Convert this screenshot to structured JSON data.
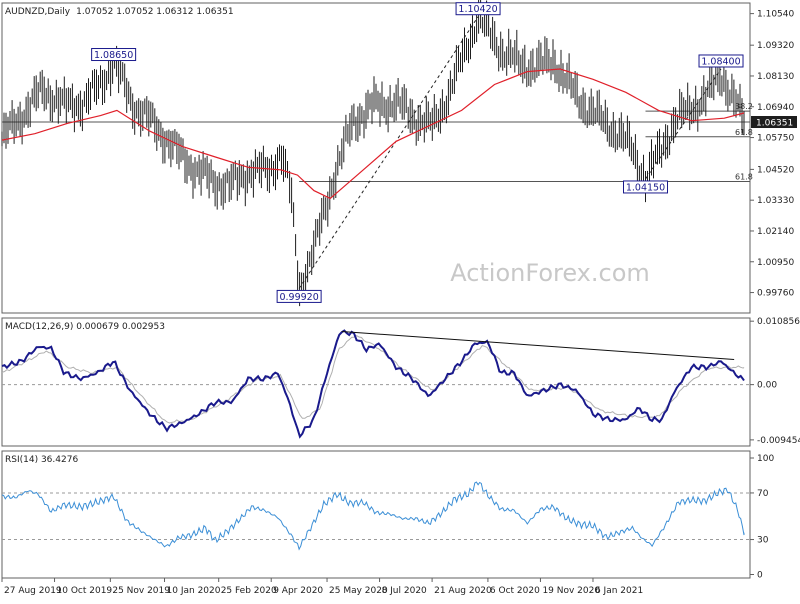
{
  "chart_data": [
    {
      "type": "ohlc",
      "panel": "price",
      "symbol": "AUDNZD,Daily",
      "header_values": "1.07052 1.07052 1.06312 1.06351",
      "watermark": "ActionForex.com",
      "ylim": [
        0.9897,
        1.1095
      ],
      "y_ticks": [
        "1.10540",
        "1.09320",
        "1.08130",
        "1.06940",
        "1.05750",
        "1.04520",
        "1.03330",
        "1.02140",
        "1.00950",
        "0.99760"
      ],
      "current_price": "1.06351",
      "ohlc_bars": 370,
      "price_path": [
        [
          0,
          1.057
        ],
        [
          12,
          1.066
        ],
        [
          25,
          1.076
        ],
        [
          38,
          1.07
        ],
        [
          50,
          1.071
        ],
        [
          60,
          1.078
        ],
        [
          68,
          1.0865
        ],
        [
          80,
          1.07
        ],
        [
          92,
          1.063
        ],
        [
          105,
          1.053
        ],
        [
          118,
          1.045
        ],
        [
          130,
          1.04
        ],
        [
          140,
          1.039
        ],
        [
          152,
          1.045
        ],
        [
          163,
          1.044
        ],
        [
          170,
          1.052
        ],
        [
          176,
          1.036
        ],
        [
          181,
          0.9992
        ],
        [
          190,
          1.014
        ],
        [
          202,
          1.042
        ],
        [
          214,
          1.064
        ],
        [
          226,
          1.07
        ],
        [
          240,
          1.071
        ],
        [
          252,
          1.065
        ],
        [
          262,
          1.062
        ],
        [
          272,
          1.074
        ],
        [
          282,
          1.091
        ],
        [
          290,
          1.1042
        ],
        [
          298,
          1.097
        ],
        [
          306,
          1.09
        ],
        [
          316,
          1.086
        ],
        [
          326,
          1.085
        ],
        [
          336,
          1.088
        ],
        [
          342,
          1.081
        ],
        [
          352,
          1.072
        ],
        [
          362,
          1.066
        ],
        [
          374,
          1.06
        ],
        [
          384,
          1.053
        ],
        [
          392,
          1.0415
        ],
        [
          400,
          1.051
        ],
        [
          410,
          1.064
        ],
        [
          420,
          1.069
        ],
        [
          430,
          1.074
        ],
        [
          438,
          1.0825
        ],
        [
          446,
          1.072
        ],
        [
          452,
          1.0635
        ]
      ],
      "moving_average": [
        [
          0,
          1.0565
        ],
        [
          20,
          1.059
        ],
        [
          40,
          1.063
        ],
        [
          60,
          1.066
        ],
        [
          70,
          1.068
        ],
        [
          90,
          1.06
        ],
        [
          110,
          1.054
        ],
        [
          130,
          1.05
        ],
        [
          150,
          1.046
        ],
        [
          170,
          1.045
        ],
        [
          180,
          1.043
        ],
        [
          190,
          1.037
        ],
        [
          200,
          1.034
        ],
        [
          220,
          1.045
        ],
        [
          240,
          1.056
        ],
        [
          260,
          1.062
        ],
        [
          280,
          1.068
        ],
        [
          300,
          1.078
        ],
        [
          320,
          1.083
        ],
        [
          340,
          1.084
        ],
        [
          360,
          1.08
        ],
        [
          380,
          1.075
        ],
        [
          400,
          1.068
        ],
        [
          420,
          1.064
        ],
        [
          440,
          1.065
        ],
        [
          452,
          1.067
        ]
      ],
      "annotations": [
        {
          "label": "1.08650",
          "kind": "high",
          "x": 68,
          "y": 1.0865
        },
        {
          "label": "0.99920",
          "kind": "low",
          "x": 181,
          "y": 0.9992
        },
        {
          "label": "1.10420",
          "kind": "high",
          "x": 290,
          "y": 1.1042
        },
        {
          "label": "1.04150",
          "kind": "low",
          "x": 392,
          "y": 1.0415
        },
        {
          "label": "1.08400",
          "kind": "high",
          "x": 438,
          "y": 1.084
        }
      ],
      "trendlines": [
        {
          "from": [
            181,
            0.9992
          ],
          "to": [
            290,
            1.1042
          ]
        },
        {
          "from": [
            392,
            1.0415
          ],
          "to": [
            438,
            1.084
          ]
        }
      ],
      "horizontal_levels": [
        {
          "value": 1.0405,
          "label": "61.8",
          "from_x": 181
        },
        {
          "value": 1.0578,
          "label": "61.8",
          "from_x": 392
        },
        {
          "value": 1.0677,
          "label": "38.2",
          "from_x": 392
        },
        {
          "value": 1.06351,
          "label": "",
          "from_x": 0
        }
      ]
    },
    {
      "type": "line",
      "panel": "macd",
      "title": "MACD(12,26,9) 0.000679 0.002953",
      "ylim": [
        -0.0105,
        0.0114
      ],
      "y_ticks": [
        "0.010856",
        "0.00",
        "-0.009454"
      ],
      "zero_line": 0.0,
      "macd_path": [
        [
          0,
          0.003
        ],
        [
          12,
          0.004
        ],
        [
          22,
          0.0065
        ],
        [
          30,
          0.0062
        ],
        [
          38,
          0.002
        ],
        [
          48,
          0.001
        ],
        [
          58,
          0.002
        ],
        [
          68,
          0.004
        ],
        [
          78,
          -0.001
        ],
        [
          90,
          -0.005
        ],
        [
          100,
          -0.0075
        ],
        [
          110,
          -0.0065
        ],
        [
          120,
          -0.005
        ],
        [
          130,
          -0.003
        ],
        [
          140,
          -0.003
        ],
        [
          150,
          0.001
        ],
        [
          160,
          0.001
        ],
        [
          168,
          0.002
        ],
        [
          175,
          -0.003
        ],
        [
          181,
          -0.0088
        ],
        [
          190,
          -0.006
        ],
        [
          198,
          0.002
        ],
        [
          206,
          0.0091
        ],
        [
          214,
          0.0087
        ],
        [
          222,
          0.006
        ],
        [
          230,
          0.007
        ],
        [
          240,
          0.003
        ],
        [
          250,
          0.001
        ],
        [
          260,
          -0.002
        ],
        [
          270,
          0.001
        ],
        [
          280,
          0.004
        ],
        [
          288,
          0.007
        ],
        [
          296,
          0.0073
        ],
        [
          304,
          0.002
        ],
        [
          312,
          0.002
        ],
        [
          320,
          -0.002
        ],
        [
          330,
          -0.001
        ],
        [
          340,
          0.0
        ],
        [
          350,
          -0.001
        ],
        [
          360,
          -0.005
        ],
        [
          370,
          -0.006
        ],
        [
          380,
          -0.006
        ],
        [
          388,
          -0.004
        ],
        [
          396,
          -0.006
        ],
        [
          402,
          -0.006
        ],
        [
          410,
          -0.001
        ],
        [
          420,
          0.003
        ],
        [
          430,
          0.003
        ],
        [
          438,
          0.004
        ],
        [
          446,
          0.002
        ],
        [
          452,
          0.0007
        ]
      ],
      "signal_path": [
        [
          0,
          0.002
        ],
        [
          15,
          0.004
        ],
        [
          27,
          0.0058
        ],
        [
          40,
          0.003
        ],
        [
          55,
          0.002
        ],
        [
          70,
          0.003
        ],
        [
          85,
          -0.002
        ],
        [
          100,
          -0.0065
        ],
        [
          115,
          -0.006
        ],
        [
          135,
          -0.003
        ],
        [
          155,
          0.0008
        ],
        [
          170,
          0.0015
        ],
        [
          183,
          -0.006
        ],
        [
          194,
          -0.004
        ],
        [
          205,
          0.006
        ],
        [
          215,
          0.0085
        ],
        [
          228,
          0.0065
        ],
        [
          245,
          0.0025
        ],
        [
          262,
          -0.001
        ],
        [
          278,
          0.003
        ],
        [
          293,
          0.0068
        ],
        [
          306,
          0.0035
        ],
        [
          322,
          -0.001
        ],
        [
          345,
          -0.0005
        ],
        [
          365,
          -0.0045
        ],
        [
          385,
          -0.0055
        ],
        [
          400,
          -0.0055
        ],
        [
          415,
          -0.0005
        ],
        [
          430,
          0.0028
        ],
        [
          446,
          0.003
        ],
        [
          452,
          0.00295
        ]
      ],
      "trendline": {
        "from": [
          207,
          0.0091
        ],
        "to": [
          446,
          0.0043
        ]
      }
    },
    {
      "type": "line",
      "panel": "rsi",
      "title": "RSI(14) 36.4276",
      "ylim": [
        -3,
        106
      ],
      "y_ticks": [
        "100",
        "70",
        "30",
        "0"
      ],
      "levels": [
        70,
        30
      ],
      "rsi_path": [
        [
          0,
          67
        ],
        [
          8,
          66
        ],
        [
          16,
          72
        ],
        [
          22,
          69
        ],
        [
          30,
          54
        ],
        [
          38,
          60
        ],
        [
          48,
          58
        ],
        [
          58,
          62
        ],
        [
          68,
          67
        ],
        [
          76,
          46
        ],
        [
          86,
          36
        ],
        [
          94,
          29
        ],
        [
          100,
          24
        ],
        [
          108,
          32
        ],
        [
          116,
          34
        ],
        [
          124,
          40
        ],
        [
          130,
          29
        ],
        [
          138,
          38
        ],
        [
          146,
          49
        ],
        [
          152,
          58
        ],
        [
          160,
          55
        ],
        [
          168,
          49
        ],
        [
          176,
          34
        ],
        [
          181,
          23
        ],
        [
          188,
          40
        ],
        [
          196,
          60
        ],
        [
          204,
          69
        ],
        [
          212,
          61
        ],
        [
          220,
          62
        ],
        [
          228,
          53
        ],
        [
          236,
          52
        ],
        [
          244,
          48
        ],
        [
          252,
          48
        ],
        [
          260,
          44
        ],
        [
          268,
          53
        ],
        [
          276,
          65
        ],
        [
          284,
          69
        ],
        [
          290,
          80
        ],
        [
          296,
          68
        ],
        [
          304,
          56
        ],
        [
          312,
          55
        ],
        [
          320,
          44
        ],
        [
          328,
          56
        ],
        [
          336,
          58
        ],
        [
          344,
          48
        ],
        [
          352,
          43
        ],
        [
          360,
          42
        ],
        [
          368,
          32
        ],
        [
          376,
          36
        ],
        [
          384,
          40
        ],
        [
          390,
          31
        ],
        [
          396,
          25
        ],
        [
          404,
          42
        ],
        [
          412,
          62
        ],
        [
          420,
          64
        ],
        [
          428,
          63
        ],
        [
          436,
          70
        ],
        [
          442,
          73
        ],
        [
          448,
          56
        ],
        [
          452,
          36
        ]
      ]
    }
  ],
  "x_axis": {
    "labels": [
      "27 Aug 2019",
      "10 Oct 2019",
      "25 Nov 2019",
      "10 Jan 2020",
      "25 Feb 2020",
      "9 Apr 2020",
      "25 May 2020",
      "8 Jul 2020",
      "21 Aug 2020",
      "6 Oct 2020",
      "19 Nov 2020",
      "6 Jan 2021"
    ],
    "label_positions": [
      0,
      32,
      66,
      99,
      132,
      164,
      198,
      230,
      262,
      296,
      328,
      360
    ],
    "domain": [
      0,
      452
    ]
  },
  "colors": {
    "price_bars": "#1e1e1e",
    "moving_average": "#e0202a",
    "macd_line": "#1a1a8c",
    "signal_line": "#b0b0b0",
    "rsi_line": "#3c8fd6",
    "grid_line": "#9a9a9a",
    "axis": "#606060",
    "annotation_border": "#1a1a8c",
    "annotation_text": "#1a1a8c",
    "current_price_bg": "#1e1e1e",
    "current_price_text": "#ffffff",
    "watermark": "#c8c8c8"
  }
}
